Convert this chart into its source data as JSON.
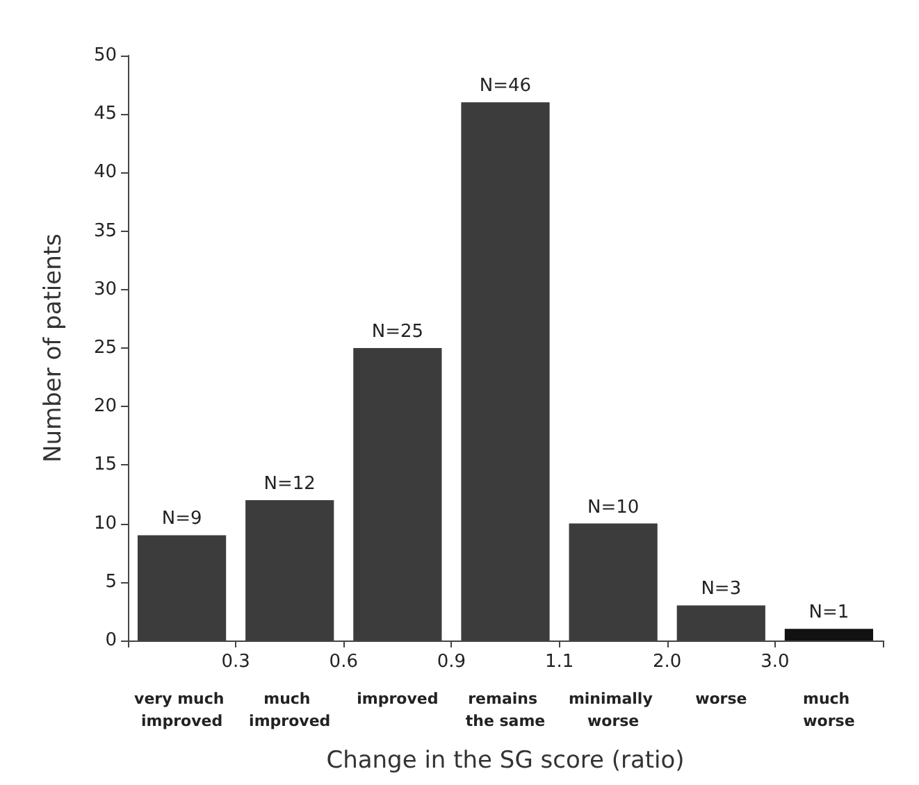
{
  "chart_data": {
    "type": "bar",
    "xlabel": "Change in the SG score (ratio)",
    "ylabel": "Number of patients",
    "categories": [
      "very much improved",
      "much improved",
      "improved",
      "remains the same",
      "minimally worse",
      "worse",
      "much worse"
    ],
    "values": [
      9,
      12,
      25,
      46,
      10,
      3,
      1
    ],
    "value_labels": [
      "N=9",
      "N=12",
      "N=25",
      "N=46",
      "N=10",
      "N=3",
      "N=1"
    ],
    "colors": [
      "#3c3c3c",
      "#3c3c3c",
      "#3c3c3c",
      "#3c3c3c",
      "#3c3c3c",
      "#3c3c3c",
      "#111111"
    ],
    "ylim": [
      0,
      50
    ],
    "yticks": [
      0,
      5,
      10,
      15,
      20,
      25,
      30,
      35,
      40,
      45,
      50
    ],
    "grid": false,
    "annotations": [
      "0.3",
      "0.6",
      "0.9",
      "1.1",
      "2.0",
      "3.0"
    ]
  }
}
